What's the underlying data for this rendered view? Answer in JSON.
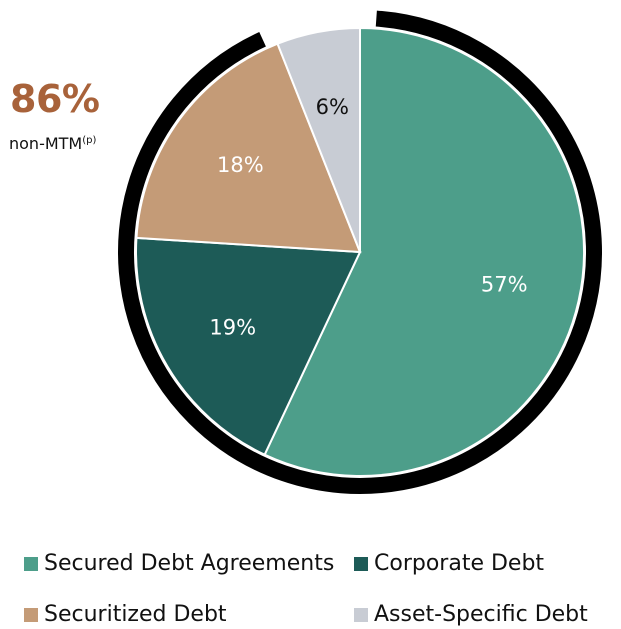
{
  "chart_data": {
    "type": "pie",
    "categories": [
      "Secured Debt Agreements",
      "Corporate Debt",
      "Securitized Debt",
      "Asset-Specific Debt"
    ],
    "values": [
      57,
      19,
      18,
      6
    ],
    "value_labels": [
      "57%",
      "19%",
      "18%",
      "6%"
    ],
    "colors": [
      "#4d9e8a",
      "#1d5b57",
      "#c49b77",
      "#c8ccd4"
    ],
    "label_colors": [
      "#ffffff",
      "#ffffff",
      "#ffffff",
      "#111111"
    ],
    "start_angle_deg": 0,
    "direction": "clockwise",
    "highlight_arc": {
      "categories": [
        "Secured Debt Agreements",
        "Corporate Debt",
        "Securitized Debt"
      ],
      "color": "#000000"
    },
    "legend": {
      "position": "bottom",
      "columns": 2
    }
  },
  "callout": {
    "value": "86%",
    "label": "non-MTM",
    "footnote": "(p)",
    "color": "#a8623a"
  }
}
